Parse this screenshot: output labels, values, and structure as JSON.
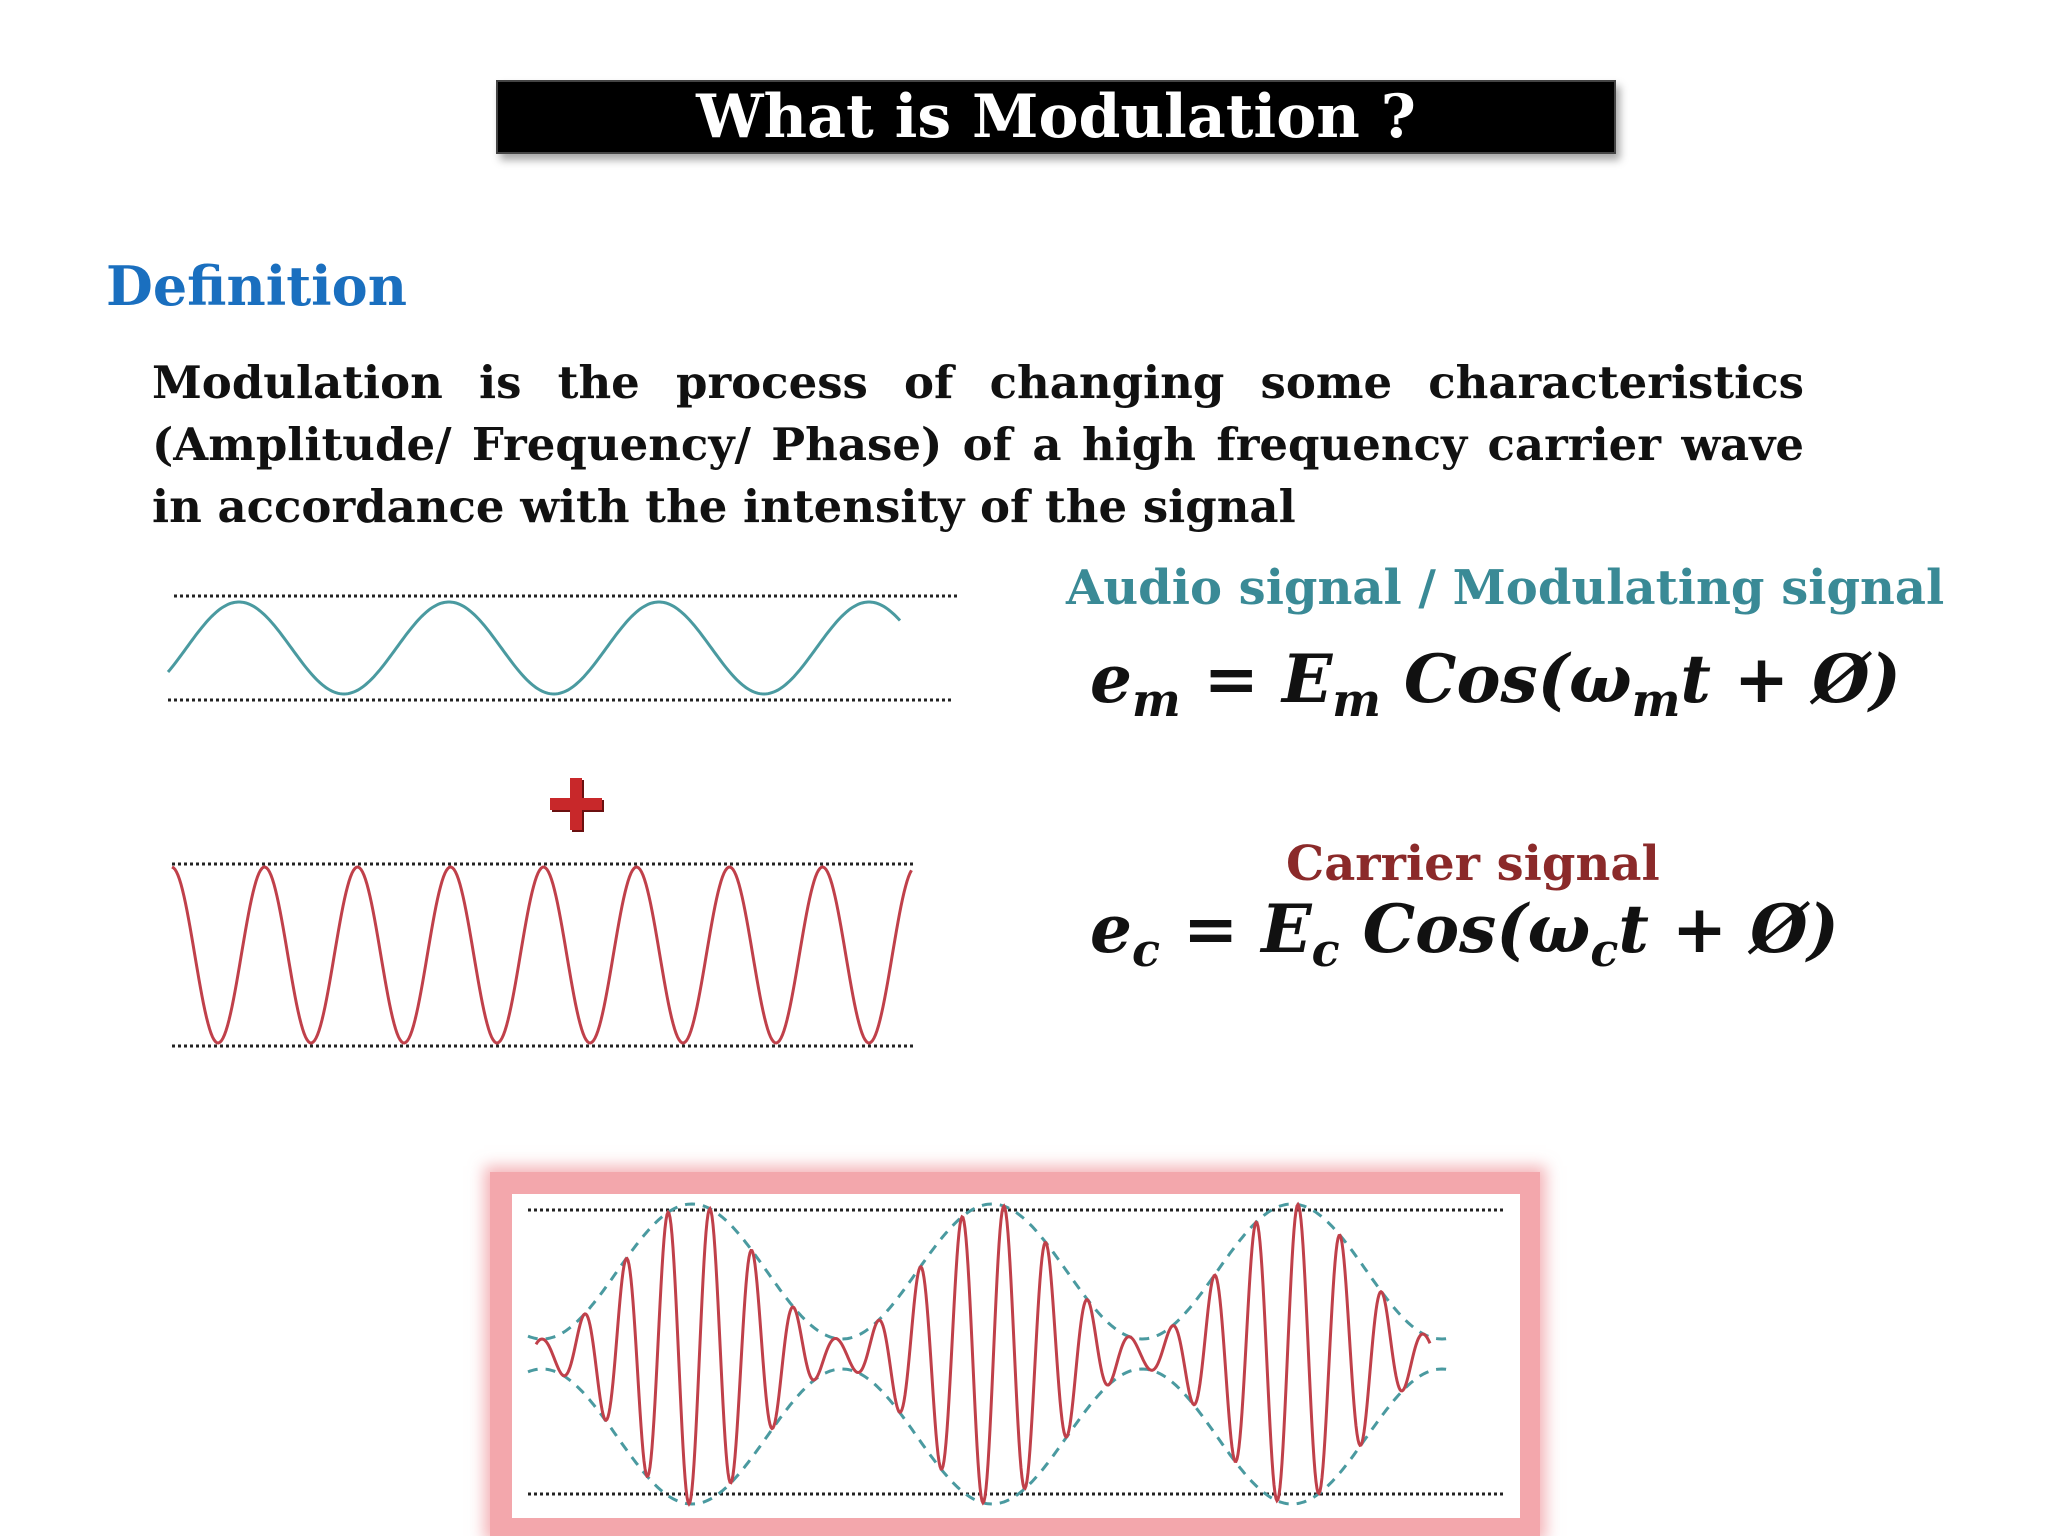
{
  "title": "What is Modulation ?",
  "definition": {
    "heading": "Definition",
    "text": "Modulation is the process of changing some characteristics (Amplitude/ Frequency/ Phase) of a high frequency carrier wave in accordance with the intensity of the signal"
  },
  "audio_signal": {
    "label": "Audio signal / Modulating signal",
    "equation": {
      "lhs": "e",
      "lhs_sub": "m",
      "eq": " = ",
      "amp": "E",
      "amp_sub": "m",
      "func": " Cos(ω",
      "arg_sub": "m",
      "tail": "t + Ø)"
    },
    "color": "#4a9aa0"
  },
  "carrier_signal": {
    "label": "Carrier signal",
    "equation": {
      "lhs": "e",
      "lhs_sub": "c",
      "eq": " = ",
      "amp": "E",
      "amp_sub": "c",
      "func": " Cos(ω",
      "arg_sub": "c",
      "tail": "t + Ø)"
    },
    "color": "#c0404a"
  },
  "icons": {
    "plus": "plus-icon"
  },
  "colors": {
    "title_bg": "#000000",
    "heading": "#1a6fbf",
    "audio_label": "#3a8a96",
    "carrier_label": "#8b2a2a",
    "am_frame": "#f3a7ac"
  }
}
